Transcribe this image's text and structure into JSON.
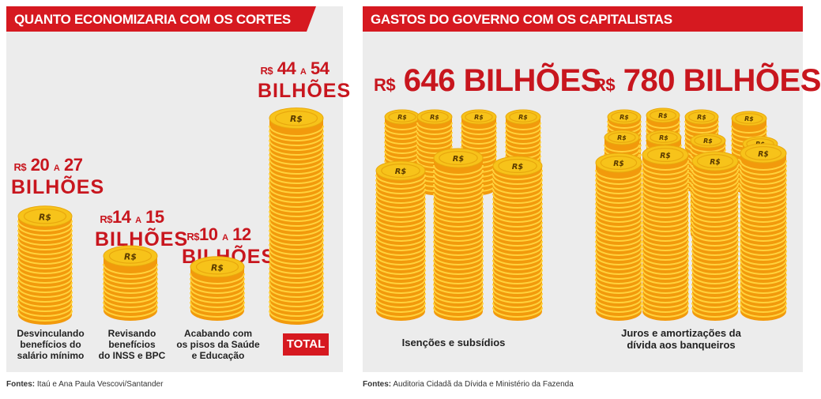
{
  "left_panel": {
    "title": "QUANTO ECONOMIZARIA COM OS CORTES",
    "total_label": "TOTAL",
    "source_prefix": "Fontes:",
    "source_text": " Itaú e Ana Paula Vescovi/Santander"
  },
  "right_panel": {
    "title": "GASTOS DO  GOVERNO COM OS CAPITALISTAS",
    "source_prefix": "Fontes:",
    "source_text": " Auditoria Cidadã da Dívida e Ministério da Fazenda"
  },
  "coin_glyph": "R$",
  "chart_data": [
    {
      "type": "bar",
      "title": "QUANTO ECONOMIZARIA COM OS CORTES",
      "unit": "bilhões de R$",
      "categories": [
        "Desvinculando benefícios do salário mínimo",
        "Revisando benefícios do INSS e BPC",
        "Acabando com os pisos da Saúde e Educação",
        "TOTAL"
      ],
      "series": [
        {
          "values_min": [
            20,
            14,
            10,
            44
          ],
          "values_max": [
            27,
            15,
            12,
            54
          ]
        }
      ],
      "bars": [
        {
          "caption_lines": [
            "Desvinculando",
            "benefícios do",
            "salário mínimo"
          ],
          "cur": "R$",
          "low": "20",
          "sep": "A",
          "high": "27",
          "unit": "BILHÕES",
          "min": 20,
          "max": 27
        },
        {
          "caption_lines": [
            "Revisando",
            "benefícios",
            "do INSS e BPC"
          ],
          "cur": "R$",
          "low": "14",
          "sep": "A",
          "high": "15",
          "unit": "BILHÕES",
          "min": 14,
          "max": 15
        },
        {
          "caption_lines": [
            "Acabando com",
            "os pisos da Saúde",
            "e Educação"
          ],
          "cur": "R$",
          "low": "10",
          "sep": "A",
          "high": "12",
          "unit": "BILHÕES",
          "min": 10,
          "max": 12
        },
        {
          "caption_lines": [],
          "cur": "R$",
          "low": "44",
          "sep": "A",
          "high": "54",
          "unit": "BILHÕES",
          "min": 44,
          "max": 54
        }
      ]
    },
    {
      "type": "bar",
      "title": "GASTOS DO  GOVERNO COM OS CAPITALISTAS",
      "unit": "bilhões de R$",
      "categories": [
        "Isenções e subsídios",
        "Juros e amortizações da dívida aos banqueiros"
      ],
      "values": [
        646,
        780
      ],
      "bars": [
        {
          "cur": "R$",
          "amount": "646 BILHÕES",
          "caption_lines": [
            "Isenções e subsídios"
          ],
          "value": 646
        },
        {
          "cur": "R$",
          "amount": "780 BILHÕES",
          "caption_lines": [
            "Juros e amortizações da",
            "dívida aos banqueiros"
          ],
          "value": 780
        }
      ]
    }
  ],
  "colors": {
    "accent": "#d61920",
    "label_red": "#c8161e",
    "coin_face": "#f7c31a",
    "coin_edge": "#f29a0c",
    "panel_bg": "#ececec"
  }
}
